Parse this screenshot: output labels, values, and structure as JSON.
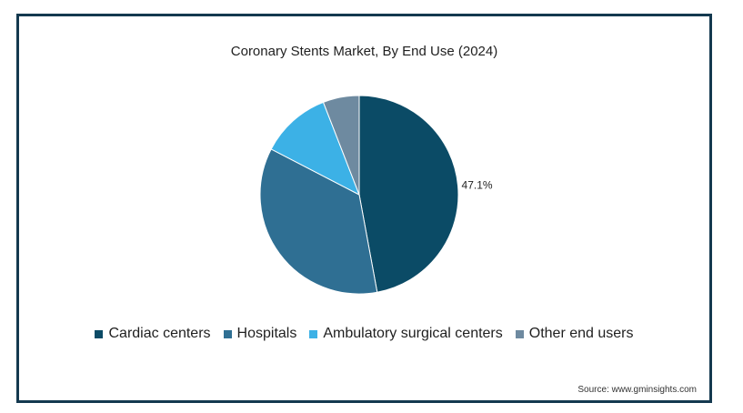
{
  "chart_data": {
    "type": "pie",
    "title": "Coronary Stents Market, By End Use (2024)",
    "slices": [
      {
        "name": "Cardiac centers",
        "value": 47.1,
        "color": "#0b4b66",
        "label": "47.1%"
      },
      {
        "name": "Hospitals",
        "value": 35.5,
        "color": "#2f6f93",
        "label": ""
      },
      {
        "name": "Ambulatory surgical centers",
        "value": 11.5,
        "color": "#3cb1e6",
        "label": ""
      },
      {
        "name": "Other end users",
        "value": 5.9,
        "color": "#6e8aa0",
        "label": ""
      }
    ],
    "legend_position": "bottom",
    "source": "Source: www.gminsights.com"
  }
}
